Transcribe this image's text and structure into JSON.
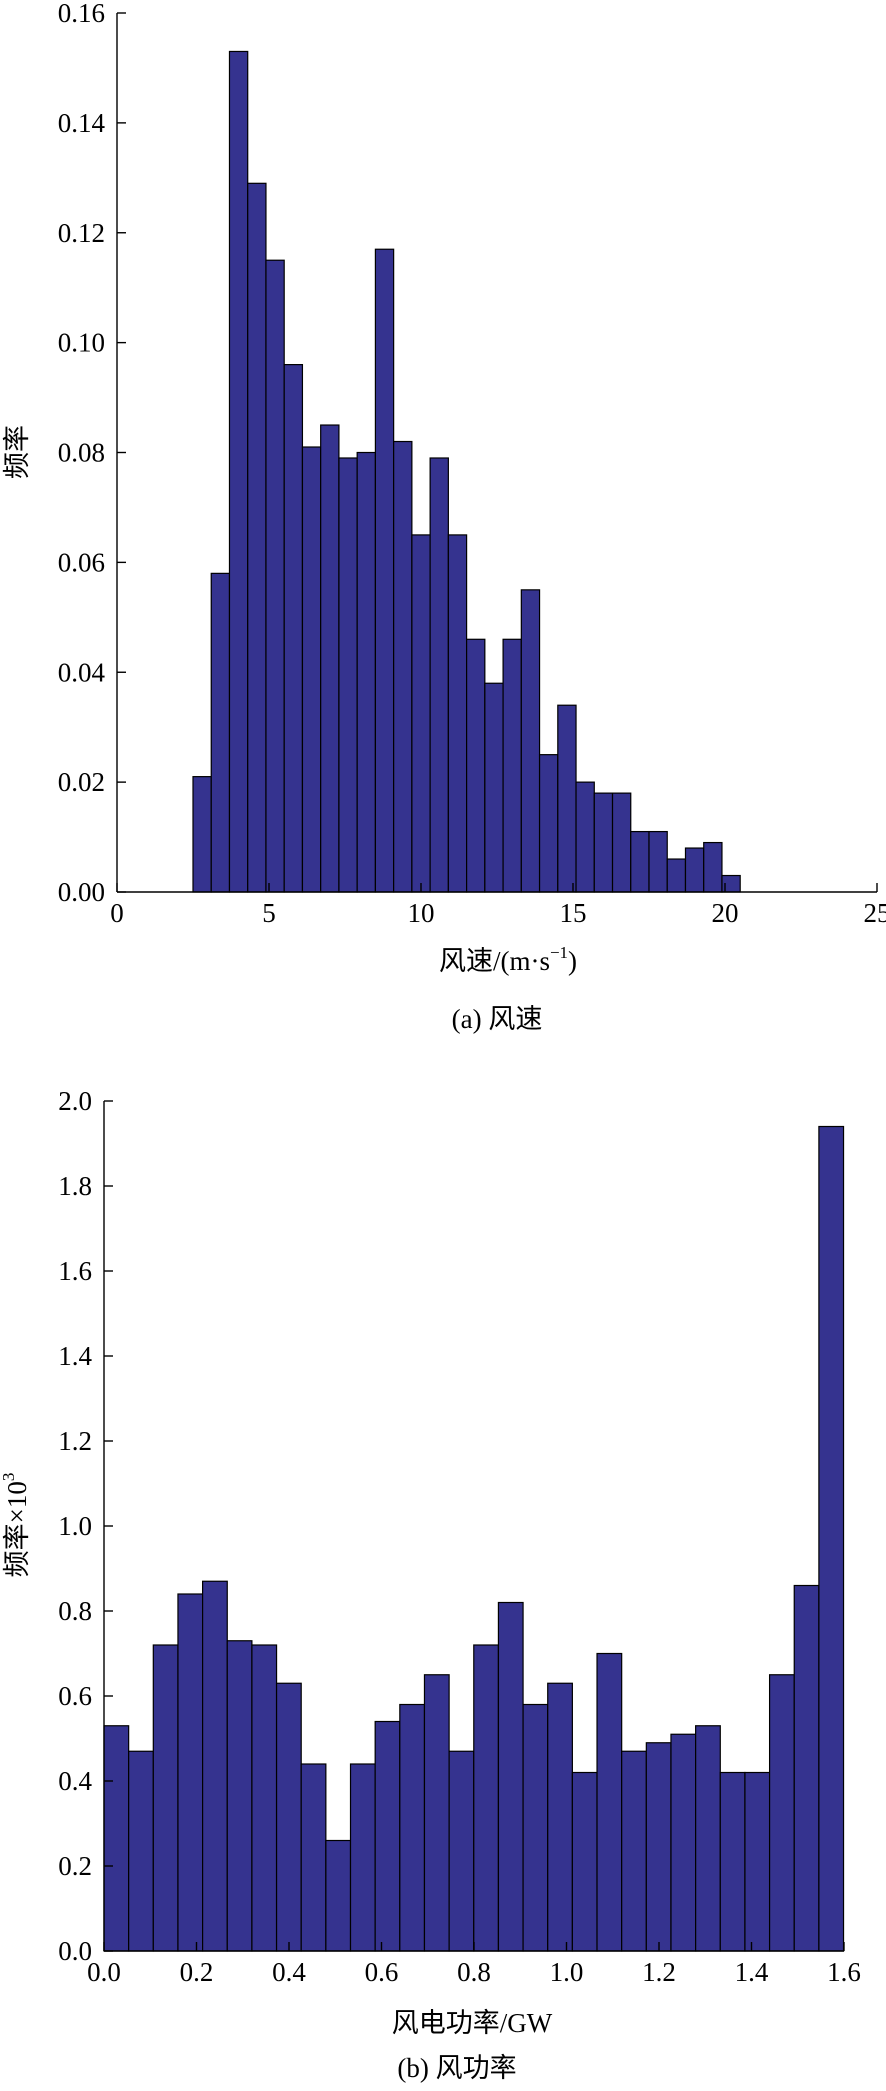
{
  "chart_data": [
    {
      "type": "bar",
      "panel_caption": "(a) 风速",
      "xlabel": "风速/(m·s",
      "xlabel_sup": "−1",
      "xlabel_tail": ")",
      "ylabel": "频率",
      "xlim": [
        0,
        25
      ],
      "ylim": [
        0,
        0.16
      ],
      "x_ticks": [
        "0",
        "5",
        "10",
        "15",
        "20",
        "25"
      ],
      "y_ticks": [
        "0.00",
        "0.02",
        "0.04",
        "0.06",
        "0.08",
        "0.10",
        "0.12",
        "0.14",
        "0.16"
      ],
      "bin_width": 0.6,
      "bin_edges_start": 2.5,
      "values": [
        0.021,
        0.058,
        0.153,
        0.129,
        0.115,
        0.096,
        0.081,
        0.085,
        0.079,
        0.08,
        0.117,
        0.082,
        0.065,
        0.079,
        0.065,
        0.046,
        0.038,
        0.046,
        0.055,
        0.025,
        0.034,
        0.02,
        0.018,
        0.018,
        0.011,
        0.011,
        0.006,
        0.008,
        0.009,
        0.003
      ],
      "bar_color": "#35338f"
    },
    {
      "type": "bar",
      "panel_caption": "(b) 风功率",
      "xlabel": "风电功率/GW",
      "ylabel": "频率×10",
      "ylabel_sup": "3",
      "xlim": [
        0,
        1.6
      ],
      "ylim": [
        0,
        2.0
      ],
      "x_ticks": [
        "0.0",
        "0.2",
        "0.4",
        "0.6",
        "0.8",
        "1.0",
        "1.2",
        "1.4",
        "1.6"
      ],
      "y_ticks": [
        "0.0",
        "0.2",
        "0.4",
        "0.6",
        "0.8",
        "1.0",
        "1.2",
        "1.4",
        "1.6",
        "1.8",
        "2.0"
      ],
      "bin_width": 0.0533,
      "bin_edges_start": 0.0,
      "values": [
        0.53,
        0.47,
        0.72,
        0.84,
        0.87,
        0.73,
        0.72,
        0.63,
        0.44,
        0.26,
        0.44,
        0.54,
        0.58,
        0.65,
        0.47,
        0.72,
        0.82,
        0.58,
        0.63,
        0.42,
        0.7,
        0.47,
        0.49,
        0.51,
        0.53,
        0.42,
        0.42,
        0.65,
        0.86,
        1.94
      ],
      "bar_color": "#35338f"
    }
  ]
}
